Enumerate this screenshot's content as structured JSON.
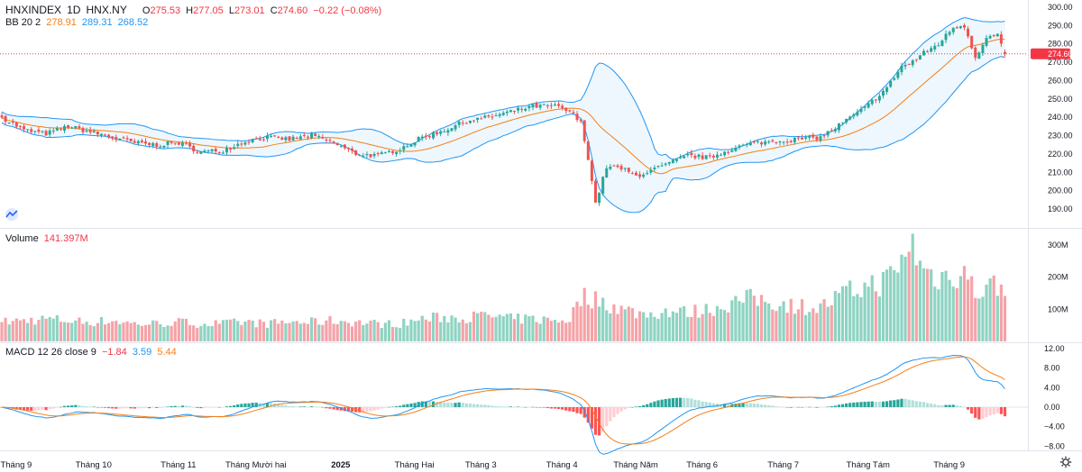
{
  "header": {
    "symbol": "HNXINDEX",
    "interval": "1D",
    "exchange": "HNX.NY",
    "ohlc": {
      "o_label": "O",
      "o": "275.53",
      "h_label": "H",
      "h": "277.05",
      "l_label": "L",
      "l": "273.01",
      "c_label": "C",
      "c": "274.60",
      "change": "−0.22 (−0.08%)"
    }
  },
  "bb_legend": {
    "name": "BB 20 2",
    "basis": "278.91",
    "upper": "289.31",
    "lower": "268.52"
  },
  "volume_legend": {
    "name": "Volume",
    "value": "141.397M"
  },
  "macd_legend": {
    "name": "MACD 12 26 close 9",
    "hist": "−1.84",
    "macd": "3.59",
    "signal": "5.44"
  },
  "price_axis": {
    "ticks": [
      "300.00",
      "290.00",
      "280.00",
      "270.00",
      "260.00",
      "250.00",
      "240.00",
      "230.00",
      "220.00",
      "210.00",
      "200.00",
      "190.00"
    ],
    "last_price": "274.60",
    "last_price_value": 274.6
  },
  "volume_axis": {
    "ticks": [
      "300M",
      "200M",
      "100M"
    ]
  },
  "macd_axis": {
    "ticks": [
      "12.00",
      "8.00",
      "4.00",
      "0.00",
      "−4.00",
      "−8.00"
    ]
  },
  "time_axis": {
    "labels": [
      "Tháng 9",
      "Tháng 10",
      "Tháng 11",
      "Tháng Mười hai",
      "2025",
      "Tháng Hai",
      "Tháng 3",
      "Tháng 4",
      "Tháng Năm",
      "Tháng 6",
      "Tháng 7",
      "Tháng Tám",
      "Tháng 9"
    ]
  },
  "colors": {
    "up": "#26a69a",
    "down": "#ef5350",
    "vol_up": "#8fd3c2",
    "vol_down": "#f5a3a8",
    "bb_basis": "#f57f17",
    "bb_band": "#2196f3",
    "macd": "#2196f3",
    "signal": "#f57f17",
    "last_price": "#f23645"
  },
  "chart_data": {
    "type": "candlestick",
    "title": "HNXINDEX 1D HNX.NY",
    "y_range": [
      185,
      302
    ],
    "volume_range_millions": [
      0,
      330
    ],
    "macd_range": [
      -9.5,
      13
    ],
    "anchors": [
      {
        "i": 0,
        "price": 240,
        "vol": 60
      },
      {
        "i": 6,
        "price": 233,
        "vol": 65
      },
      {
        "i": 12,
        "price": 231,
        "vol": 70
      },
      {
        "i": 18,
        "price": 235,
        "vol": 65
      },
      {
        "i": 24,
        "price": 232,
        "vol": 60
      },
      {
        "i": 30,
        "price": 229,
        "vol": 65
      },
      {
        "i": 36,
        "price": 226,
        "vol": 55
      },
      {
        "i": 42,
        "price": 225,
        "vol": 55
      },
      {
        "i": 48,
        "price": 226,
        "vol": 60
      },
      {
        "i": 54,
        "price": 221,
        "vol": 55
      },
      {
        "i": 60,
        "price": 222,
        "vol": 55
      },
      {
        "i": 66,
        "price": 227,
        "vol": 60
      },
      {
        "i": 72,
        "price": 229,
        "vol": 55
      },
      {
        "i": 78,
        "price": 228,
        "vol": 60
      },
      {
        "i": 84,
        "price": 230,
        "vol": 60
      },
      {
        "i": 90,
        "price": 226,
        "vol": 65
      },
      {
        "i": 96,
        "price": 220,
        "vol": 60
      },
      {
        "i": 102,
        "price": 219,
        "vol": 55
      },
      {
        "i": 108,
        "price": 223,
        "vol": 55
      },
      {
        "i": 114,
        "price": 229,
        "vol": 70
      },
      {
        "i": 120,
        "price": 233,
        "vol": 75
      },
      {
        "i": 126,
        "price": 238,
        "vol": 75
      },
      {
        "i": 132,
        "price": 240,
        "vol": 80
      },
      {
        "i": 138,
        "price": 243,
        "vol": 70
      },
      {
        "i": 144,
        "price": 246,
        "vol": 70
      },
      {
        "i": 150,
        "price": 246,
        "vol": 65
      },
      {
        "i": 154,
        "price": 243,
        "vol": 70
      },
      {
        "i": 157,
        "price": 237,
        "vol": 135
      },
      {
        "i": 159,
        "price": 218,
        "vol": 140
      },
      {
        "i": 161,
        "price": 193,
        "vol": 130
      },
      {
        "i": 164,
        "price": 213,
        "vol": 120
      },
      {
        "i": 168,
        "price": 212,
        "vol": 100
      },
      {
        "i": 172,
        "price": 208,
        "vol": 90
      },
      {
        "i": 176,
        "price": 211,
        "vol": 85
      },
      {
        "i": 180,
        "price": 214,
        "vol": 95
      },
      {
        "i": 186,
        "price": 219,
        "vol": 90
      },
      {
        "i": 192,
        "price": 218,
        "vol": 100
      },
      {
        "i": 198,
        "price": 223,
        "vol": 120
      },
      {
        "i": 204,
        "price": 226,
        "vol": 135
      },
      {
        "i": 210,
        "price": 227,
        "vol": 120
      },
      {
        "i": 216,
        "price": 228,
        "vol": 110
      },
      {
        "i": 222,
        "price": 229,
        "vol": 105
      },
      {
        "i": 228,
        "price": 237,
        "vol": 145
      },
      {
        "i": 234,
        "price": 245,
        "vol": 170
      },
      {
        "i": 240,
        "price": 256,
        "vol": 190
      },
      {
        "i": 244,
        "price": 268,
        "vol": 240
      },
      {
        "i": 246,
        "price": 269,
        "vol": 320
      },
      {
        "i": 250,
        "price": 275,
        "vol": 220
      },
      {
        "i": 254,
        "price": 280,
        "vol": 200
      },
      {
        "i": 258,
        "price": 289,
        "vol": 210
      },
      {
        "i": 261,
        "price": 290,
        "vol": 220
      },
      {
        "i": 264,
        "price": 273,
        "vol": 150
      },
      {
        "i": 267,
        "price": 283,
        "vol": 170
      },
      {
        "i": 270,
        "price": 285,
        "vol": 175
      },
      {
        "i": 272,
        "price": 274.6,
        "vol": 141.4
      }
    ]
  }
}
